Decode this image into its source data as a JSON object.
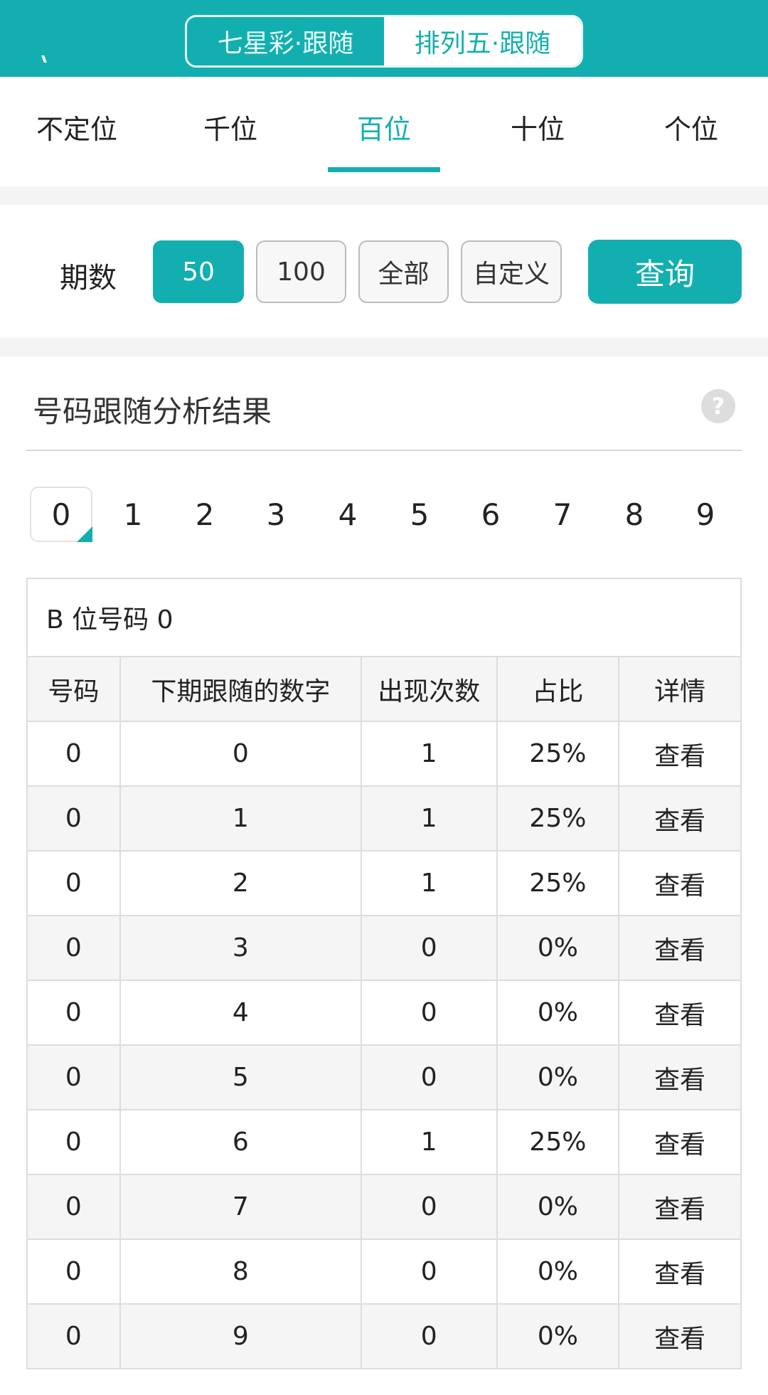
{
  "header": {
    "toggle": [
      "七星彩·跟随",
      "排列五·跟随"
    ],
    "active": 1
  },
  "tabs": [
    "不定位",
    "千位",
    "百位",
    "十位",
    "个位"
  ],
  "active_tab": 2,
  "period": {
    "label": "期数",
    "options": [
      "50",
      "100",
      "全部",
      "自定义"
    ],
    "selected": 0,
    "query": "查询"
  },
  "section": {
    "title": "号码跟随分析结果",
    "help_icon": "question-circle-icon"
  },
  "digits": [
    "0",
    "1",
    "2",
    "3",
    "4",
    "5",
    "6",
    "7",
    "8",
    "9"
  ],
  "selected_digit": 0,
  "table": {
    "caption": "B 位号码 0",
    "headers": [
      "号码",
      "下期跟随的数字",
      "出现次数",
      "占比",
      "详情"
    ],
    "rows": [
      [
        "0",
        "0",
        "1",
        "25%",
        "查看"
      ],
      [
        "0",
        "1",
        "1",
        "25%",
        "查看"
      ],
      [
        "0",
        "2",
        "1",
        "25%",
        "查看"
      ],
      [
        "0",
        "3",
        "0",
        "0%",
        "查看"
      ],
      [
        "0",
        "4",
        "0",
        "0%",
        "查看"
      ],
      [
        "0",
        "5",
        "0",
        "0%",
        "查看"
      ],
      [
        "0",
        "6",
        "1",
        "25%",
        "查看"
      ],
      [
        "0",
        "7",
        "0",
        "0%",
        "查看"
      ],
      [
        "0",
        "8",
        "0",
        "0%",
        "查看"
      ],
      [
        "0",
        "9",
        "0",
        "0%",
        "查看"
      ]
    ]
  },
  "colors": {
    "accent": "#13afb0"
  }
}
